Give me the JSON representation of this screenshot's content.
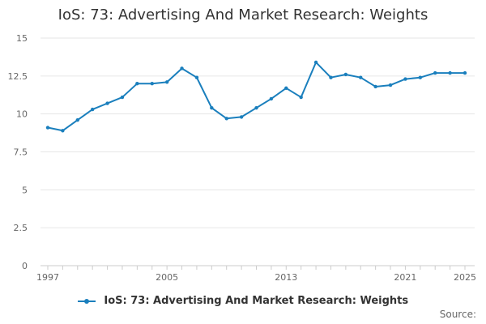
{
  "colors": {
    "series": "#1a7fbd",
    "grid": "#e6e6e6",
    "axis": "#cccccc",
    "tick_text": "#666666"
  },
  "chart_data": {
    "type": "line",
    "title": "IoS: 73: Advertising And Market Research: Weights",
    "xlabel": "",
    "ylabel": "",
    "grid": true,
    "legend_position": "bottom",
    "xlim": [
      1997,
      2025
    ],
    "ylim": [
      0,
      15
    ],
    "x_ticks": [
      1997,
      2005,
      2013,
      2021,
      2025
    ],
    "y_ticks": [
      0,
      2.5,
      5,
      7.5,
      10,
      12.5,
      15
    ],
    "y_tick_labels": [
      "0",
      "2.5",
      "5",
      "7.5",
      "10",
      "12.5",
      "15"
    ],
    "x_tick_labels": [
      "1997",
      "2005",
      "2013",
      "2021",
      "2025"
    ],
    "series": [
      {
        "name": "IoS: 73: Advertising And Market Research: Weights",
        "x": [
          1997,
          1998,
          1999,
          2000,
          2001,
          2002,
          2003,
          2004,
          2005,
          2006,
          2007,
          2008,
          2009,
          2010,
          2011,
          2012,
          2013,
          2014,
          2015,
          2016,
          2017,
          2018,
          2019,
          2020,
          2021,
          2022,
          2023,
          2024,
          2025
        ],
        "values": [
          9.1,
          8.9,
          9.6,
          10.3,
          10.7,
          11.1,
          12.0,
          12.0,
          12.1,
          13.0,
          12.4,
          10.4,
          9.7,
          9.8,
          10.4,
          11.0,
          11.7,
          11.1,
          13.4,
          12.4,
          12.6,
          12.4,
          11.8,
          11.9,
          12.3,
          12.4,
          12.7,
          12.7,
          12.7
        ]
      }
    ]
  },
  "footer": {
    "source_label": "Source:"
  }
}
